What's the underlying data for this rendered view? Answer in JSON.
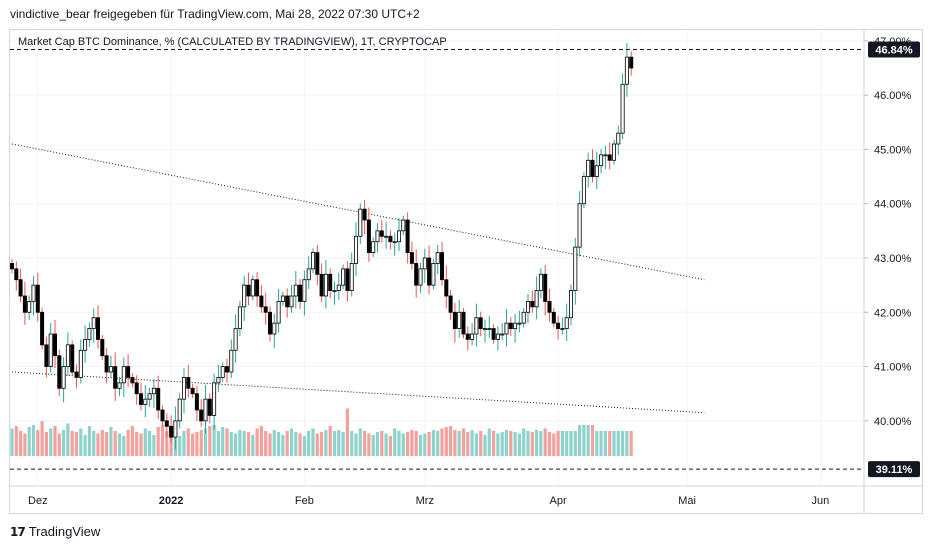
{
  "header": {
    "text": "vindictive_bear freigegeben für TradingView.com, Mai 28, 2022 07:30 UTC+2"
  },
  "legend": {
    "text": "Market Cap BTC Dominance, % (CALCULATED BY TRADINGVIEW), 1T, CRYPTOCAP"
  },
  "footer": {
    "logo_text": "TradingView",
    "logo_mark": "17"
  },
  "colors": {
    "up": "#26a69a",
    "down": "#ef5350",
    "vol_up": "#8ed3cb",
    "vol_down": "#f4a19d",
    "candle_body": "#ffffff",
    "candle_outline": "#000000",
    "grid": "#f0f3fa"
  },
  "chart_data": {
    "type": "candlestick",
    "title": "Market Cap BTC Dominance, % (CALCULATED BY TRADINGVIEW), 1T, CRYPTOCAP",
    "ylim": [
      38.8,
      47.2
    ],
    "y_ticks": [
      "40.00%",
      "41.00%",
      "42.00%",
      "43.00%",
      "44.00%",
      "45.00%",
      "46.00%",
      "47.00%"
    ],
    "y_tick_values": [
      40,
      41,
      42,
      43,
      44,
      45,
      46,
      47
    ],
    "x_ticks": [
      {
        "label": "Dez",
        "day": 6
      },
      {
        "label": "2022",
        "day": 37,
        "bold": true
      },
      {
        "label": "Feb",
        "day": 68
      },
      {
        "label": "Mrz",
        "day": 96
      },
      {
        "label": "Apr",
        "day": 127
      },
      {
        "label": "Mai",
        "day": 157
      },
      {
        "label": "Jun",
        "day": 188
      }
    ],
    "price_lines": [
      {
        "label": "46.84%",
        "value": 46.84,
        "style": "dashed",
        "badge": "46.84%"
      },
      {
        "label": "39.11%",
        "value": 39.11,
        "style": "dashed",
        "badge": "39.11%"
      }
    ],
    "trendlines": [
      {
        "from": [
          0,
          45.1
        ],
        "to": [
          161,
          42.6
        ]
      },
      {
        "from": [
          0,
          40.9
        ],
        "to": [
          161,
          40.15
        ]
      }
    ],
    "close": [
      42.8,
      42.6,
      42.3,
      42.0,
      42.2,
      42.5,
      42.0,
      41.4,
      41.0,
      41.6,
      41.2,
      40.6,
      41.0,
      41.4,
      40.9,
      40.8,
      41.3,
      41.5,
      41.7,
      41.9,
      41.5,
      41.2,
      40.9,
      41.0,
      40.6,
      40.7,
      41.0,
      40.8,
      40.7,
      40.5,
      40.3,
      40.4,
      40.5,
      40.6,
      40.2,
      40.0,
      39.9,
      39.7,
      40.0,
      40.4,
      40.8,
      40.6,
      40.5,
      40.2,
      40.0,
      40.4,
      40.1,
      40.7,
      40.8,
      41.0,
      40.9,
      41.3,
      41.7,
      42.1,
      42.5,
      42.3,
      42.6,
      42.3,
      42.1,
      42.0,
      41.6,
      41.8,
      42.2,
      42.3,
      42.1,
      42.3,
      42.5,
      42.2,
      42.6,
      42.8,
      43.1,
      42.7,
      42.3,
      42.7,
      42.4,
      42.4,
      42.5,
      42.8,
      42.4,
      42.9,
      43.4,
      43.9,
      43.7,
      43.1,
      43.3,
      43.5,
      43.4,
      43.4,
      43.3,
      43.3,
      43.5,
      43.7,
      43.1,
      42.9,
      42.5,
      42.8,
      43.0,
      42.5,
      42.9,
      43.1,
      42.6,
      42.3,
      42.0,
      41.7,
      42.0,
      41.6,
      41.5,
      41.6,
      41.9,
      41.7,
      41.7,
      41.7,
      41.5,
      41.6,
      41.6,
      41.8,
      41.7,
      41.8,
      41.8,
      42.0,
      42.2,
      42.1,
      42.4,
      42.7,
      42.2,
      42.0,
      41.8,
      41.7,
      41.7,
      41.9,
      42.4,
      43.2,
      44.0,
      44.5,
      44.8,
      44.5,
      44.7,
      44.9,
      44.9,
      44.8,
      45.1,
      45.3,
      46.2,
      46.7,
      46.5
    ],
    "volume": [
      0.55,
      0.6,
      0.5,
      0.45,
      0.58,
      0.62,
      0.52,
      0.7,
      0.48,
      0.55,
      0.6,
      0.45,
      0.52,
      0.65,
      0.5,
      0.48,
      0.55,
      0.42,
      0.6,
      0.5,
      0.45,
      0.52,
      0.48,
      0.58,
      0.5,
      0.45,
      0.4,
      0.52,
      0.6,
      0.48,
      0.45,
      0.55,
      0.5,
      0.42,
      0.58,
      0.62,
      0.5,
      0.48,
      0.45,
      0.4,
      0.5,
      0.55,
      0.45,
      0.48,
      0.52,
      0.55,
      0.6,
      0.62,
      0.5,
      0.58,
      0.55,
      0.48,
      0.45,
      0.52,
      0.5,
      0.48,
      0.42,
      0.55,
      0.6,
      0.5,
      0.45,
      0.52,
      0.48,
      0.42,
      0.5,
      0.55,
      0.48,
      0.45,
      0.4,
      0.5,
      0.55,
      0.45,
      0.48,
      0.52,
      0.6,
      0.5,
      0.52,
      0.48,
      0.95,
      0.5,
      0.45,
      0.55,
      0.5,
      0.45,
      0.42,
      0.48,
      0.5,
      0.45,
      0.4,
      0.55,
      0.5,
      0.45,
      0.48,
      0.52,
      0.5,
      0.42,
      0.45,
      0.48,
      0.52,
      0.5,
      0.55,
      0.58,
      0.6,
      0.52,
      0.5,
      0.55,
      0.48,
      0.52,
      0.45,
      0.5,
      0.42,
      0.55,
      0.5,
      0.45,
      0.48,
      0.52,
      0.5,
      0.48,
      0.45,
      0.55,
      0.5,
      0.48,
      0.52,
      0.5,
      0.55,
      0.48,
      0.45,
      0.5,
      0.5,
      0.5,
      0.5,
      0.5,
      0.62,
      0.62,
      0.62,
      0.62,
      0.5,
      0.5,
      0.5,
      0.5,
      0.5,
      0.5,
      0.5,
      0.5,
      0.5
    ]
  }
}
